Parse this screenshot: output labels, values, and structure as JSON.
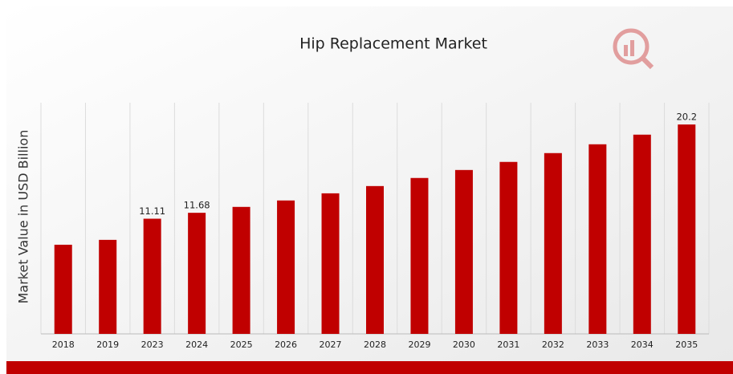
{
  "chart_data": {
    "type": "bar",
    "title": "Hip Replacement Market",
    "y_label": "Market Value in USD Billion",
    "categories": [
      "2018",
      "2019",
      "2023",
      "2024",
      "2025",
      "2026",
      "2027",
      "2028",
      "2029",
      "2030",
      "2031",
      "2032",
      "2033",
      "2034",
      "2035"
    ],
    "values": [
      8.6,
      9.07,
      11.11,
      11.68,
      12.25,
      12.87,
      13.56,
      14.26,
      15.04,
      15.81,
      16.59,
      17.44,
      18.29,
      19.22,
      20.2
    ],
    "value_labels": [
      null,
      null,
      "11.11",
      "11.68",
      null,
      null,
      null,
      null,
      null,
      null,
      null,
      null,
      null,
      null,
      "20.2"
    ],
    "color": "#c00000",
    "ylim": [
      0,
      22.3
    ],
    "grid": true
  }
}
